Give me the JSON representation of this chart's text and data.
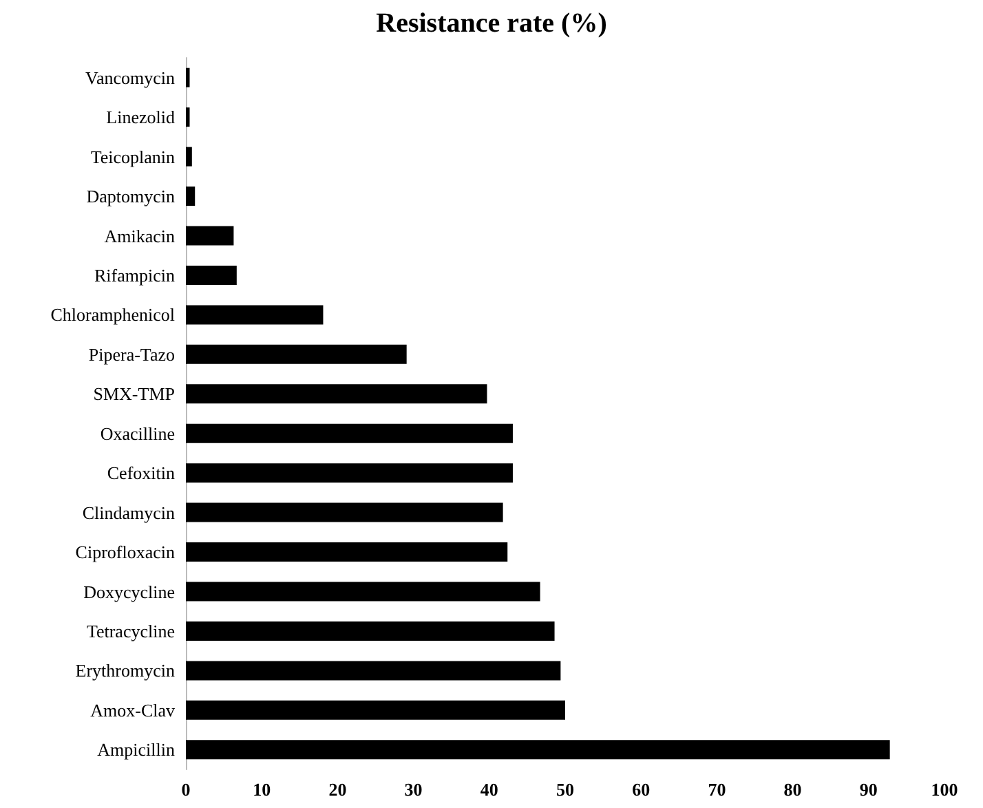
{
  "chart_data": {
    "type": "bar",
    "orientation": "horizontal",
    "title": "Resistance rate (%)",
    "categories": [
      "Vancomycin",
      "Linezolid",
      "Teicoplanin",
      "Daptomycin",
      "Amikacin",
      "Rifampicin",
      "Chloramphenicol",
      "Pipera-Tazo",
      "SMX-TMP",
      "Oxacilline",
      "Cefoxitin",
      "Clindamycin",
      "Ciprofloxacin",
      "Doxycycline",
      "Tetracycline",
      "Erythromycin",
      "Amox-Clav",
      "Ampicillin"
    ],
    "values": [
      0.5,
      0.5,
      0.8,
      1.2,
      6.3,
      6.7,
      18.1,
      29.1,
      39.7,
      43.1,
      43.1,
      41.8,
      42.4,
      46.7,
      48.6,
      49.4,
      50.0,
      92.8
    ],
    "color": "#000000",
    "xlim": [
      0,
      100
    ],
    "xticks": [
      0,
      10,
      20,
      30,
      40,
      50,
      60,
      70,
      80,
      90,
      100
    ]
  }
}
